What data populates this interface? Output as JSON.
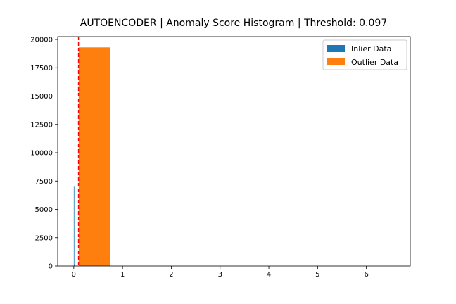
{
  "chart_data": {
    "type": "bar",
    "title": "AUTOENCODER | Anomaly Score Histogram | Threshold: 0.097",
    "xlabel": "",
    "ylabel": "",
    "xlim": [
      -0.33,
      6.9
    ],
    "ylim": [
      0,
      20250
    ],
    "xticks": [
      0,
      1,
      2,
      3,
      4,
      5,
      6
    ],
    "yticks": [
      0,
      2500,
      5000,
      7500,
      10000,
      12500,
      15000,
      17500,
      20000
    ],
    "threshold": 0.097,
    "threshold_color": "#ff0000",
    "series": [
      {
        "name": "Inlier Data",
        "color": "#1f77b4",
        "bins": [
          {
            "x0": 0.0,
            "x1": 0.01,
            "count": 7000
          },
          {
            "x0": 0.01,
            "x1": 0.02,
            "count": 150
          }
        ]
      },
      {
        "name": "Outlier Data",
        "color": "#ff7f0e",
        "bins": [
          {
            "x0": 0.1,
            "x1": 0.75,
            "count": 19300
          },
          {
            "x0": 0.75,
            "x1": 6.6,
            "count": 0
          }
        ]
      }
    ],
    "legend_position": "top-right",
    "grid": false
  }
}
